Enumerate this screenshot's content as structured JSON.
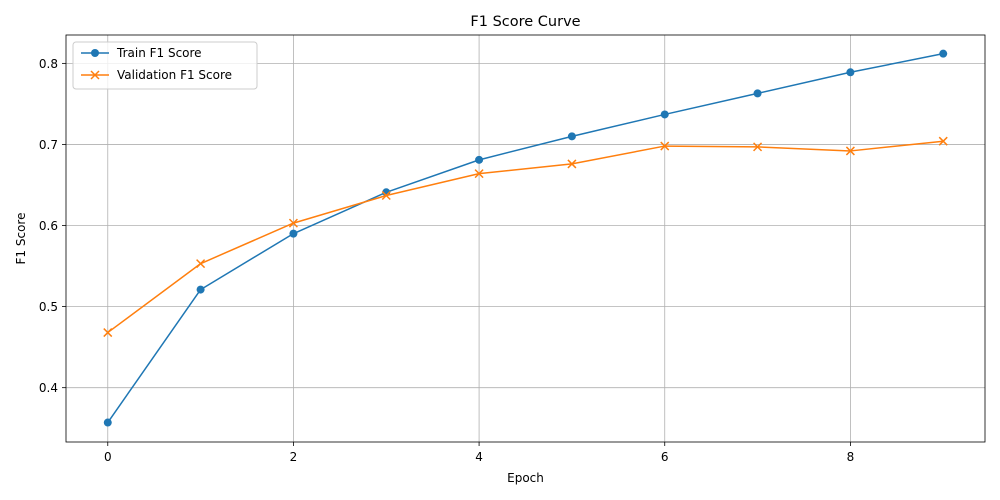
{
  "chart_data": {
    "type": "line",
    "title": "F1 Score Curve",
    "xlabel": "Epoch",
    "ylabel": "F1 Score",
    "x": [
      0,
      1,
      2,
      3,
      4,
      5,
      6,
      7,
      8,
      9
    ],
    "xlim": [
      -0.45,
      9.45
    ],
    "ylim": [
      0.333,
      0.835
    ],
    "xticks": [
      0,
      2,
      4,
      6,
      8
    ],
    "xtick_labels": [
      "0",
      "2",
      "4",
      "6",
      "8"
    ],
    "yticks": [
      0.4,
      0.5,
      0.6,
      0.7,
      0.8
    ],
    "ytick_labels": [
      "0.4",
      "0.5",
      "0.6",
      "0.7",
      "0.8"
    ],
    "grid": true,
    "legend_position": "top-left",
    "series": [
      {
        "name": "Train F1 Score",
        "color": "#1f77b4",
        "marker": "circle",
        "values": [
          0.357,
          0.521,
          0.59,
          0.641,
          0.681,
          0.71,
          0.737,
          0.763,
          0.789,
          0.812
        ]
      },
      {
        "name": "Validation F1 Score",
        "color": "#ff7f0e",
        "marker": "x",
        "values": [
          0.468,
          0.553,
          0.603,
          0.637,
          0.664,
          0.676,
          0.698,
          0.697,
          0.692,
          0.704
        ]
      }
    ]
  }
}
